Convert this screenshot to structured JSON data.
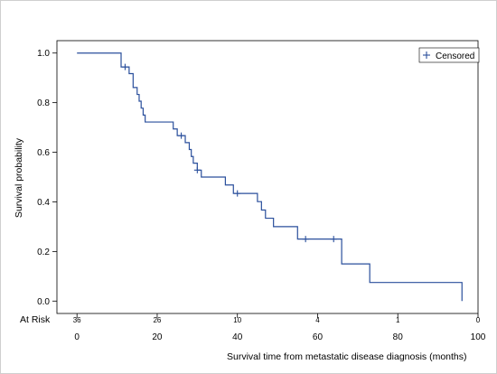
{
  "chart_data": {
    "type": "line",
    "subtype": "kaplan-meier",
    "xlabel": "Survival time from metastatic disease diagnosis (months)",
    "ylabel": "Survival probability",
    "xlim": [
      -5,
      100
    ],
    "ylim": [
      -0.05,
      1.05
    ],
    "x_ticks": [
      0,
      20,
      40,
      60,
      80,
      100
    ],
    "y_ticks": [
      0.0,
      0.2,
      0.4,
      0.6,
      0.8,
      1.0
    ],
    "y_tick_labels": [
      "0.0",
      "0.2",
      "0.4",
      "0.6",
      "0.8",
      "1.0"
    ],
    "grid": false,
    "legend": {
      "position": "top-right",
      "entries": [
        {
          "symbol": "+",
          "label": "Censored"
        }
      ]
    },
    "series": [
      {
        "color": "#2a4f9c",
        "steps": [
          [
            0,
            1.0
          ],
          [
            11,
            0.944
          ],
          [
            13,
            0.917
          ],
          [
            14,
            0.861
          ],
          [
            15,
            0.833
          ],
          [
            15.5,
            0.806
          ],
          [
            16,
            0.778
          ],
          [
            16.5,
            0.75
          ],
          [
            17,
            0.722
          ],
          [
            23,
            0.722
          ],
          [
            24,
            0.694
          ],
          [
            25,
            0.667
          ],
          [
            27,
            0.639
          ],
          [
            28,
            0.611
          ],
          [
            28.5,
            0.583
          ],
          [
            29,
            0.556
          ],
          [
            30,
            0.528
          ],
          [
            31,
            0.5
          ],
          [
            37,
            0.468
          ],
          [
            39,
            0.434
          ],
          [
            45,
            0.401
          ],
          [
            46,
            0.367
          ],
          [
            47,
            0.334
          ],
          [
            49,
            0.3
          ],
          [
            55,
            0.25
          ],
          [
            66,
            0.15
          ],
          [
            73,
            0.075
          ],
          [
            96,
            0.0
          ]
        ],
        "end_x": 96,
        "censored": [
          [
            12,
            0.944
          ],
          [
            26,
            0.667
          ],
          [
            30,
            0.528
          ],
          [
            40,
            0.434
          ],
          [
            57,
            0.25
          ],
          [
            64,
            0.25
          ]
        ]
      }
    ],
    "at_risk": {
      "label": "At Risk",
      "times": [
        0,
        20,
        40,
        60,
        80,
        100
      ],
      "counts": [
        "36",
        "26",
        "10",
        "4",
        "1",
        "0"
      ]
    }
  }
}
